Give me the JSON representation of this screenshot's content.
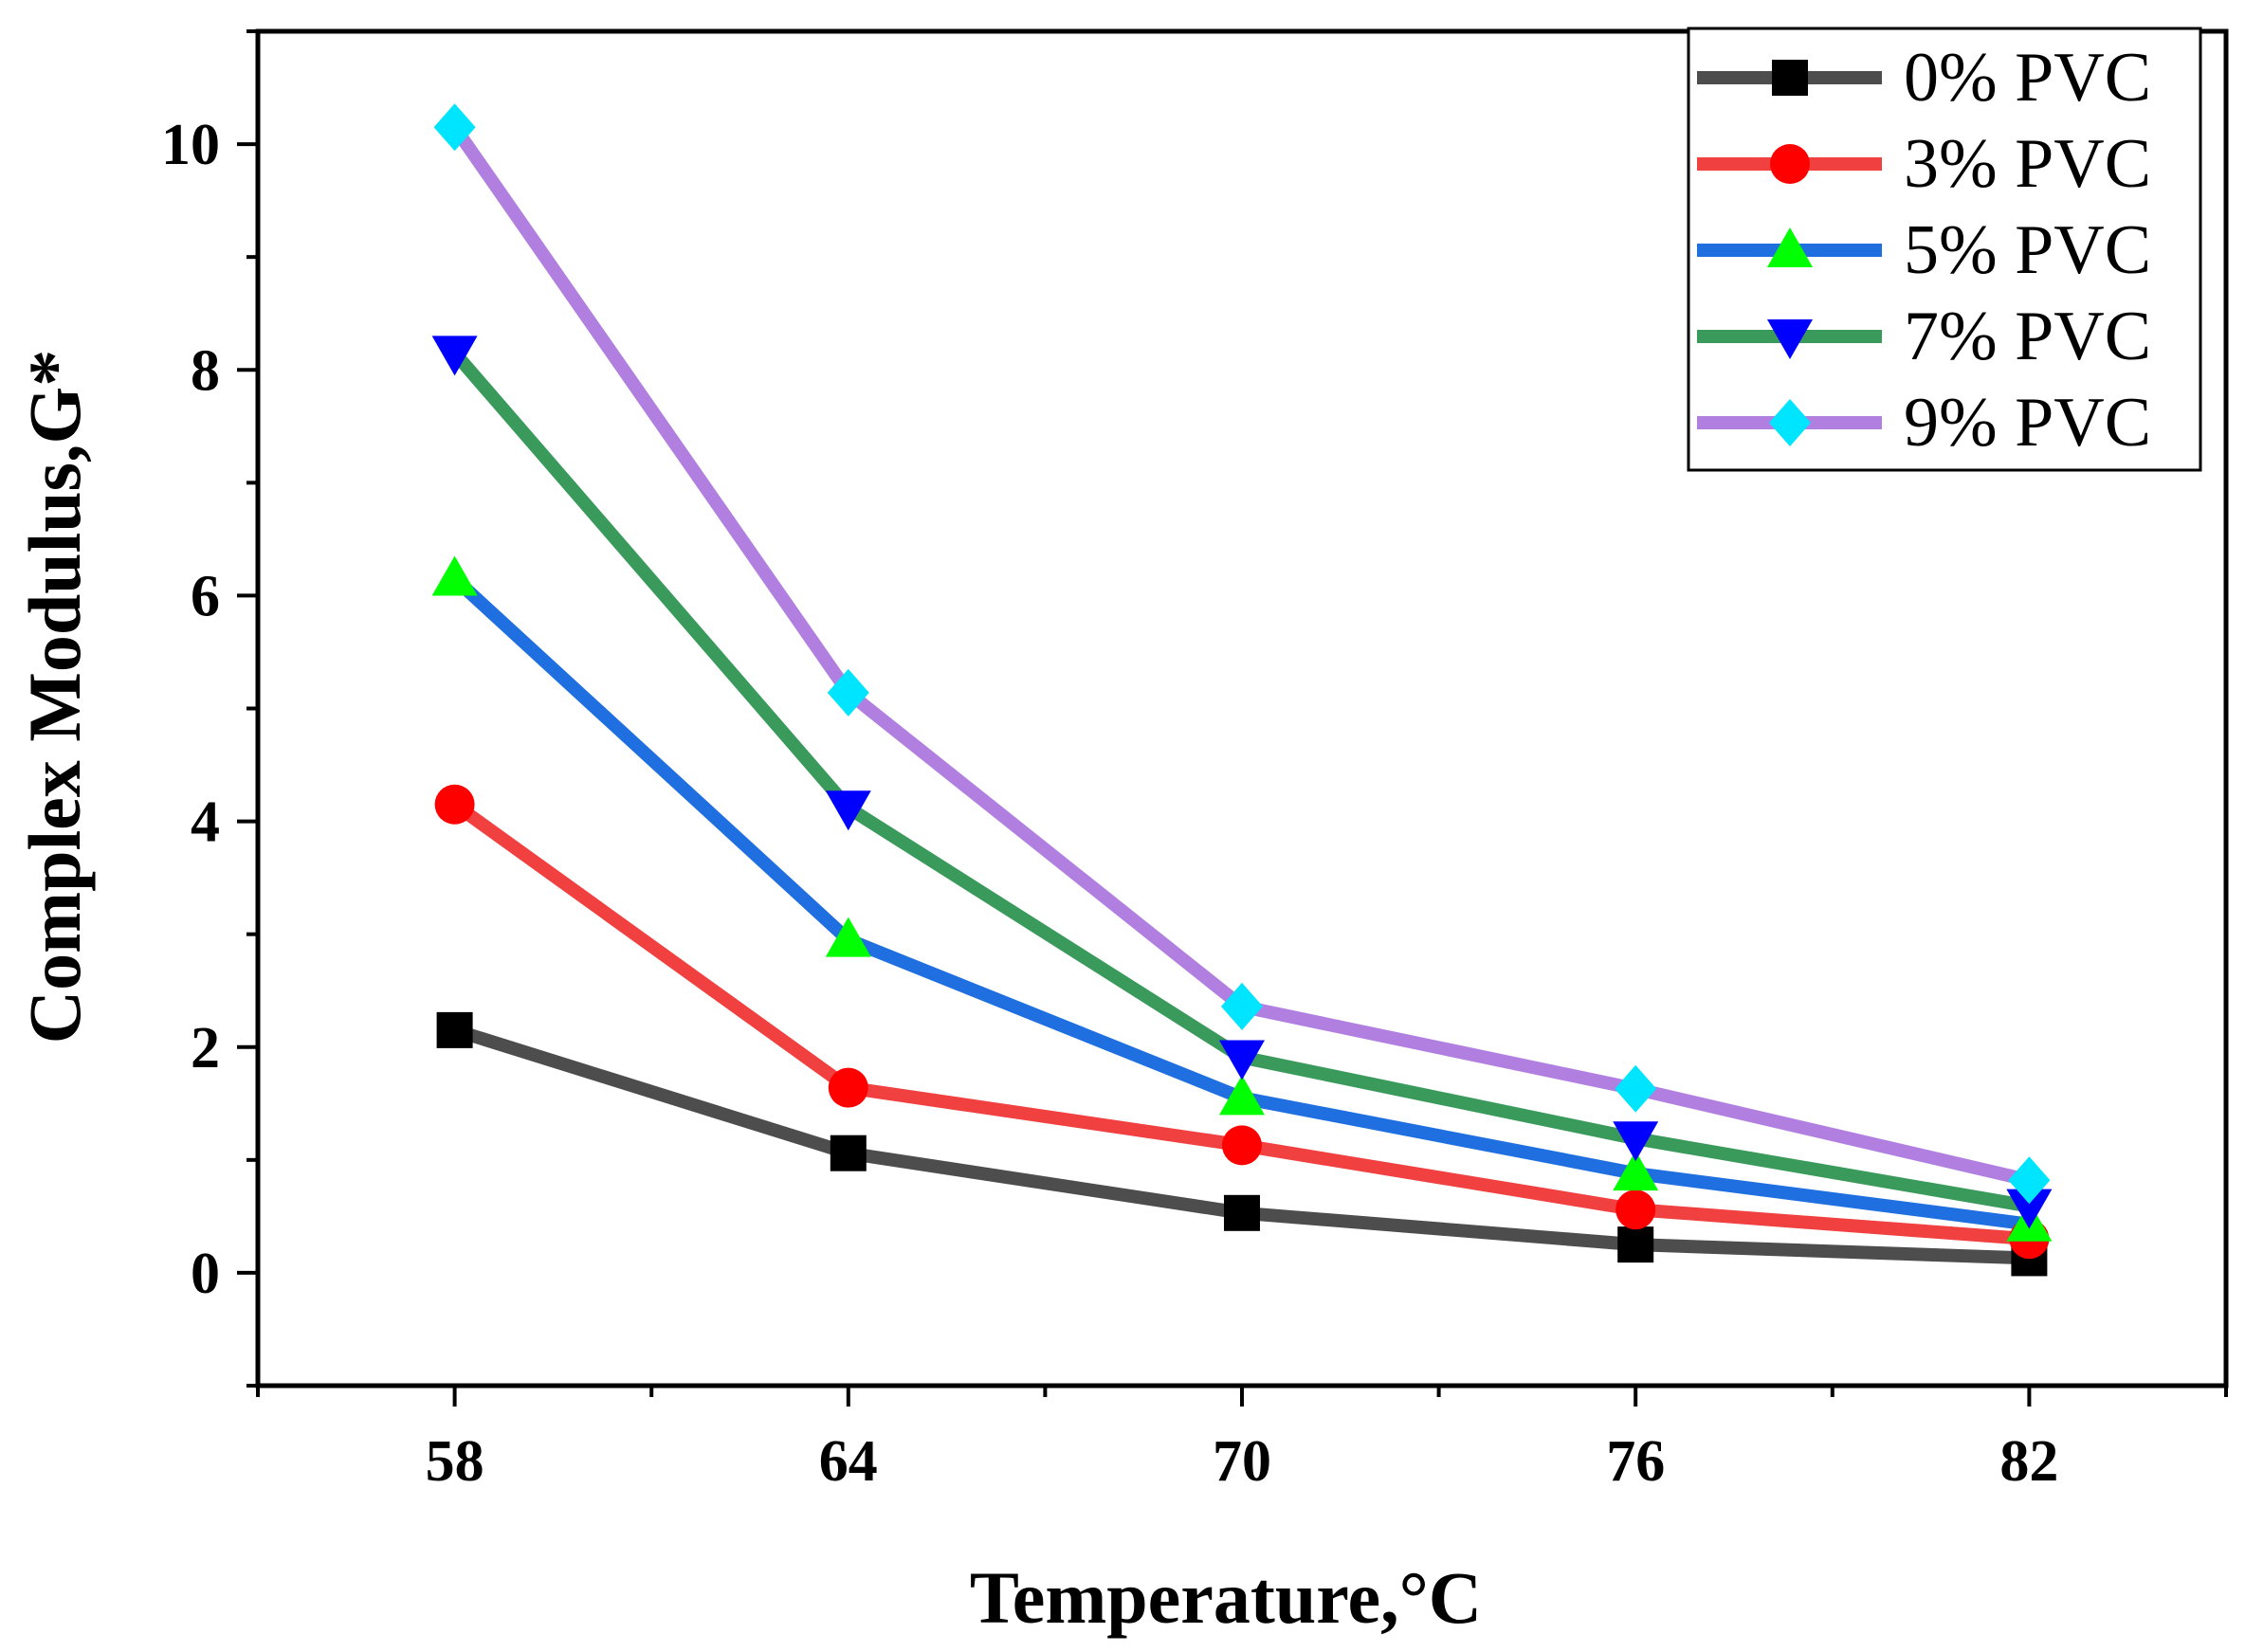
{
  "chart_data": {
    "type": "line",
    "title": "",
    "xlabel": "Temperature,°C",
    "ylabel": "Complex Modulus,G*",
    "x": [
      58,
      64,
      70,
      76,
      82
    ],
    "xticks": [
      "58",
      "64",
      "70",
      "76",
      "82"
    ],
    "xlim": [
      55,
      85
    ],
    "ylim": [
      -1,
      11
    ],
    "yticks": [
      "0",
      "2",
      "4",
      "6",
      "8",
      "10"
    ],
    "grid": false,
    "legend_position": "top-right",
    "series": [
      {
        "name": "0% PVC",
        "values": [
          2.15,
          1.06,
          0.53,
          0.25,
          0.13
        ],
        "line_color": "#4d4d4d",
        "marker": "square",
        "marker_color": "#000000"
      },
      {
        "name": "3% PVC",
        "values": [
          4.15,
          1.64,
          1.13,
          0.56,
          0.3
        ],
        "line_color": "#f04040",
        "marker": "circle",
        "marker_color": "#ff0000"
      },
      {
        "name": "5% PVC",
        "values": [
          6.15,
          2.95,
          1.55,
          0.88,
          0.43
        ],
        "line_color": "#1f6fe0",
        "marker": "triangle-up",
        "marker_color": "#00ff00"
      },
      {
        "name": "7% PVC",
        "values": [
          8.15,
          4.12,
          1.91,
          1.19,
          0.59
        ],
        "line_color": "#3a9a5b",
        "marker": "triangle-down",
        "marker_color": "#0000ff"
      },
      {
        "name": "9% PVC",
        "values": [
          10.15,
          5.14,
          2.36,
          1.63,
          0.82
        ],
        "line_color": "#b07fe0",
        "marker": "diamond",
        "marker_color": "#00e5ff"
      }
    ]
  }
}
